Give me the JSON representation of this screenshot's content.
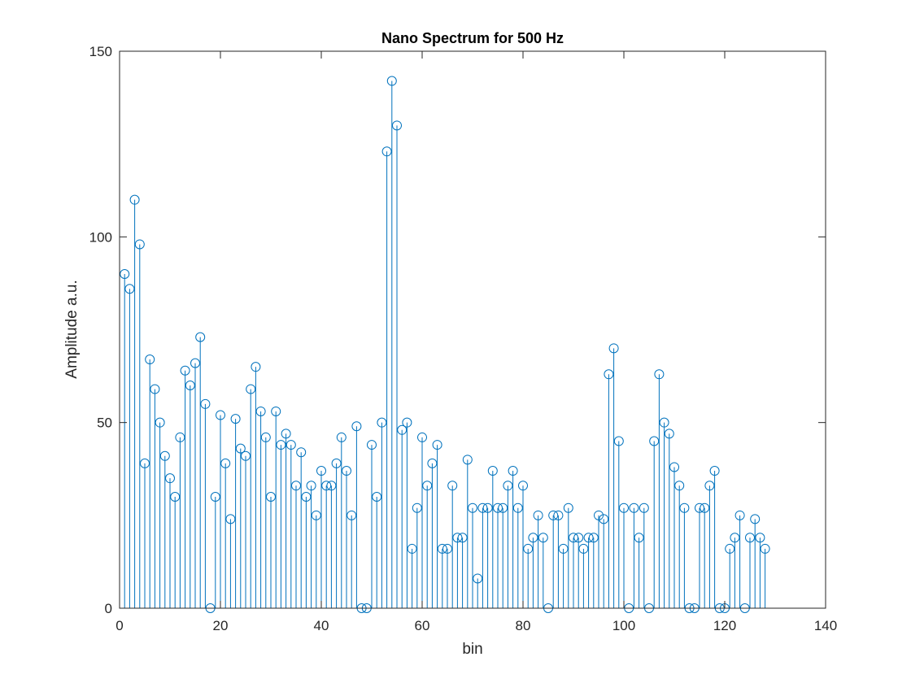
{
  "chart_data": {
    "type": "stem",
    "title": "Nano Spectrum for 500 Hz",
    "xlabel": "bin",
    "ylabel": "Amplitude a.u.",
    "xlim": [
      0,
      140
    ],
    "ylim": [
      0,
      150
    ],
    "xticks": [
      0,
      20,
      40,
      60,
      80,
      100,
      120,
      140
    ],
    "yticks": [
      0,
      50,
      100,
      150
    ],
    "grid": false,
    "legend": "none",
    "color": "#0072BD",
    "marker": "circle",
    "x": [
      1,
      2,
      3,
      4,
      5,
      6,
      7,
      8,
      9,
      10,
      11,
      12,
      13,
      14,
      15,
      16,
      17,
      18,
      19,
      20,
      21,
      22,
      23,
      24,
      25,
      26,
      27,
      28,
      29,
      30,
      31,
      32,
      33,
      34,
      35,
      36,
      37,
      38,
      39,
      40,
      41,
      42,
      43,
      44,
      45,
      46,
      47,
      48,
      49,
      50,
      51,
      52,
      53,
      54,
      55,
      56,
      57,
      58,
      59,
      60,
      61,
      62,
      63,
      64,
      65,
      66,
      67,
      68,
      69,
      70,
      71,
      72,
      73,
      74,
      75,
      76,
      77,
      78,
      79,
      80,
      81,
      82,
      83,
      84,
      85,
      86,
      87,
      88,
      89,
      90,
      91,
      92,
      93,
      94,
      95,
      96,
      97,
      98,
      99,
      100,
      101,
      102,
      103,
      104,
      105,
      106,
      107,
      108,
      109,
      110,
      111,
      112,
      113,
      114,
      115,
      116,
      117,
      118,
      119,
      120,
      121,
      122,
      123,
      124,
      125,
      126,
      127,
      128
    ],
    "values": [
      90,
      86,
      110,
      98,
      39,
      67,
      59,
      50,
      41,
      35,
      30,
      46,
      64,
      60,
      66,
      73,
      55,
      0,
      30,
      52,
      39,
      24,
      51,
      43,
      41,
      59,
      65,
      53,
      46,
      30,
      53,
      44,
      47,
      44,
      33,
      42,
      30,
      33,
      25,
      37,
      33,
      33,
      39,
      46,
      37,
      25,
      49,
      0,
      0,
      44,
      30,
      50,
      123,
      142,
      130,
      48,
      50,
      16,
      27,
      46,
      33,
      39,
      44,
      16,
      16,
      33,
      19,
      19,
      40,
      27,
      8,
      27,
      27,
      37,
      27,
      27,
      33,
      37,
      27,
      33,
      16,
      19,
      25,
      19,
      0,
      25,
      25,
      16,
      27,
      19,
      19,
      16,
      19,
      19,
      25,
      24,
      63,
      70,
      45,
      27,
      0,
      27,
      19,
      27,
      0,
      45,
      63,
      50,
      47,
      38,
      33,
      27,
      0,
      0,
      27,
      27,
      33,
      37,
      0,
      0,
      16,
      19,
      25,
      0,
      19,
      24,
      19,
      16
    ]
  }
}
